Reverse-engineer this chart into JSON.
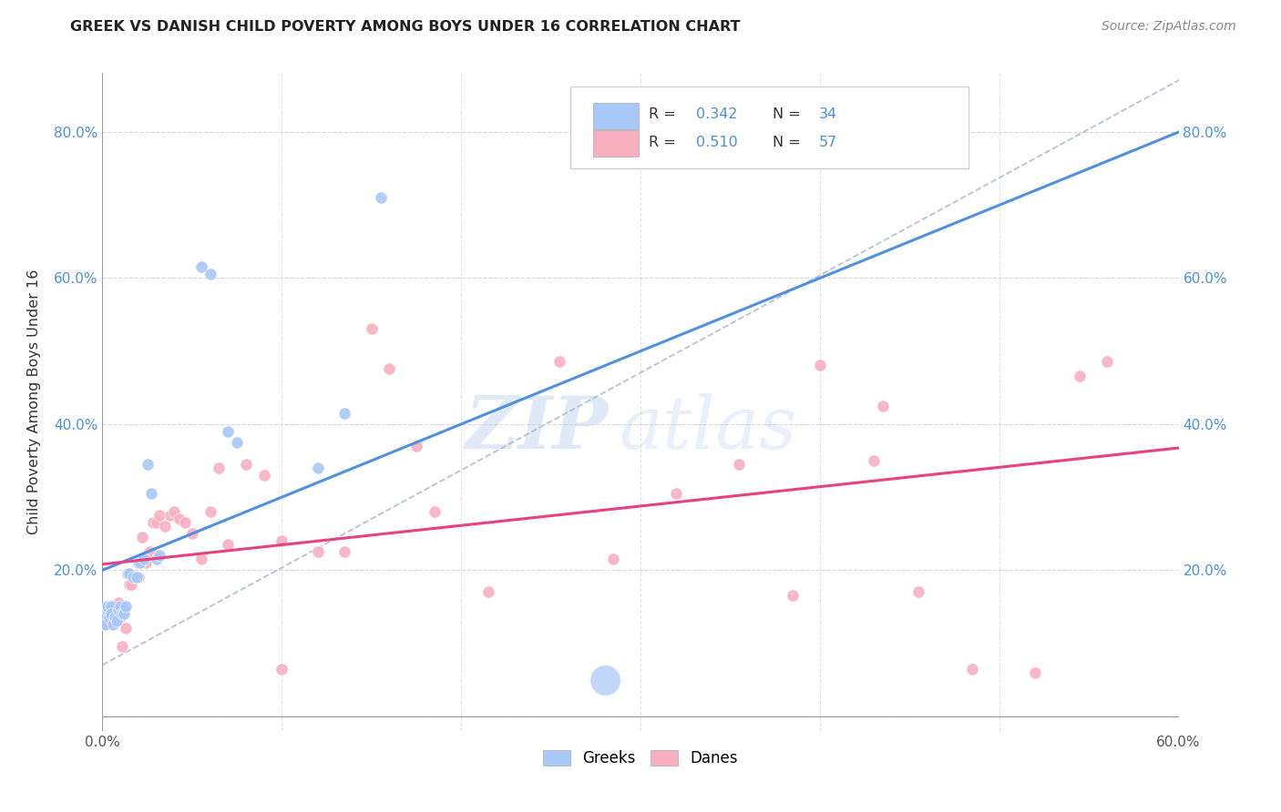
{
  "title": "GREEK VS DANISH CHILD POVERTY AMONG BOYS UNDER 16 CORRELATION CHART",
  "source": "Source: ZipAtlas.com",
  "ylabel": "Child Poverty Among Boys Under 16",
  "xlim": [
    0.0,
    0.6
  ],
  "ylim": [
    -0.02,
    0.88
  ],
  "xticks": [
    0.0,
    0.1,
    0.2,
    0.3,
    0.4,
    0.5,
    0.6
  ],
  "yticks": [
    0.0,
    0.2,
    0.4,
    0.6,
    0.8
  ],
  "xtick_labels": [
    "0.0%",
    "",
    "",
    "",
    "",
    "",
    "60.0%"
  ],
  "ytick_labels": [
    "",
    "20.0%",
    "40.0%",
    "60.0%",
    "80.0%"
  ],
  "greek_color": "#a8c8f8",
  "danish_color": "#f8afc0",
  "greek_line_color": "#5090e0",
  "danish_line_color": "#e84080",
  "dashed_line_color": "#a8b8d0",
  "watermark_zip": "ZIP",
  "watermark_atlas": "atlas",
  "background_color": "#ffffff",
  "grid_color": "#c8c8c8",
  "greeks_x": [
    0.001,
    0.002,
    0.003,
    0.003,
    0.004,
    0.005,
    0.005,
    0.006,
    0.007,
    0.008,
    0.009,
    0.01,
    0.011,
    0.012,
    0.013,
    0.014,
    0.015,
    0.017,
    0.019,
    0.02,
    0.021,
    0.023,
    0.025,
    0.027,
    0.03,
    0.032,
    0.055,
    0.06,
    0.07,
    0.075,
    0.12,
    0.135,
    0.155,
    0.28
  ],
  "greeks_y": [
    0.135,
    0.125,
    0.145,
    0.15,
    0.135,
    0.15,
    0.14,
    0.125,
    0.135,
    0.13,
    0.145,
    0.15,
    0.14,
    0.14,
    0.15,
    0.195,
    0.195,
    0.19,
    0.19,
    0.21,
    0.21,
    0.215,
    0.345,
    0.305,
    0.215,
    0.22,
    0.615,
    0.605,
    0.39,
    0.375,
    0.34,
    0.415,
    0.71,
    0.05
  ],
  "greeks_big": [
    false,
    false,
    false,
    false,
    false,
    false,
    false,
    false,
    false,
    false,
    false,
    false,
    false,
    false,
    false,
    false,
    false,
    false,
    false,
    false,
    false,
    false,
    false,
    false,
    false,
    false,
    false,
    false,
    false,
    false,
    false,
    false,
    false,
    true
  ],
  "danes_x": [
    0.001,
    0.002,
    0.003,
    0.004,
    0.005,
    0.006,
    0.007,
    0.008,
    0.009,
    0.01,
    0.011,
    0.012,
    0.013,
    0.015,
    0.016,
    0.018,
    0.02,
    0.022,
    0.024,
    0.026,
    0.028,
    0.03,
    0.032,
    0.035,
    0.038,
    0.04,
    0.043,
    0.046,
    0.05,
    0.055,
    0.06,
    0.065,
    0.07,
    0.08,
    0.09,
    0.1,
    0.12,
    0.135,
    0.15,
    0.16,
    0.185,
    0.215,
    0.255,
    0.285,
    0.32,
    0.355,
    0.385,
    0.435,
    0.455,
    0.485,
    0.52,
    0.545,
    0.56,
    0.4,
    0.43,
    0.1,
    0.175
  ],
  "danes_y": [
    0.125,
    0.14,
    0.135,
    0.145,
    0.13,
    0.13,
    0.14,
    0.15,
    0.155,
    0.135,
    0.095,
    0.145,
    0.12,
    0.18,
    0.18,
    0.19,
    0.19,
    0.245,
    0.21,
    0.225,
    0.265,
    0.265,
    0.275,
    0.26,
    0.275,
    0.28,
    0.27,
    0.265,
    0.25,
    0.215,
    0.28,
    0.34,
    0.235,
    0.345,
    0.33,
    0.24,
    0.225,
    0.225,
    0.53,
    0.475,
    0.28,
    0.17,
    0.485,
    0.215,
    0.305,
    0.345,
    0.165,
    0.425,
    0.17,
    0.065,
    0.06,
    0.465,
    0.485,
    0.48,
    0.35,
    0.065,
    0.37
  ]
}
